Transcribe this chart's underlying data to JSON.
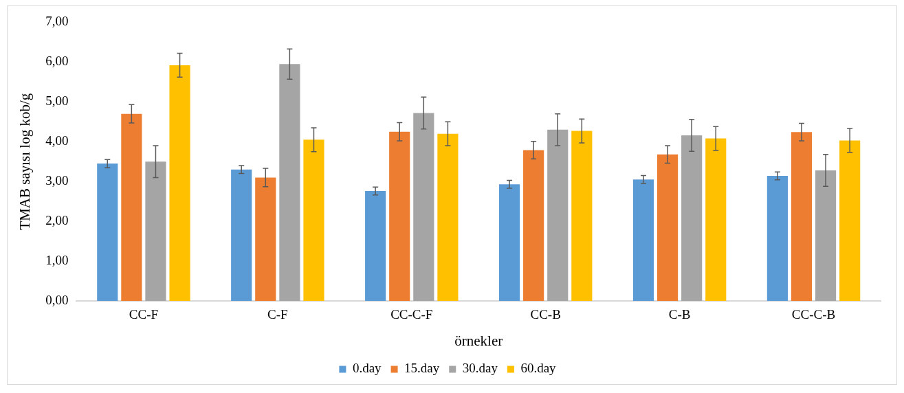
{
  "chart_data": {
    "type": "bar",
    "xlabel": "örnekler",
    "ylabel": "TMAB sayısı log kob/g",
    "categories": [
      "CC-F",
      "C-F",
      "CC-C-F",
      "CC-B",
      "C-B",
      "CC-C-B"
    ],
    "series": [
      {
        "name": "0.day",
        "color": "#5b9bd5",
        "values": [
          3.45,
          3.3,
          2.76,
          2.93,
          3.05,
          3.14
        ],
        "errors": [
          0.1,
          0.1,
          0.1,
          0.1,
          0.1,
          0.1
        ]
      },
      {
        "name": "15.day",
        "color": "#ed7d31",
        "values": [
          4.7,
          3.1,
          4.25,
          3.79,
          3.68,
          4.24
        ],
        "errors": [
          0.23,
          0.23,
          0.23,
          0.22,
          0.22,
          0.22
        ]
      },
      {
        "name": "30.day",
        "color": "#a5a5a5",
        "values": [
          3.5,
          5.95,
          4.72,
          4.3,
          4.16,
          3.28
        ],
        "errors": [
          0.4,
          0.38,
          0.4,
          0.4,
          0.4,
          0.4
        ]
      },
      {
        "name": "60.day",
        "color": "#ffc000",
        "values": [
          5.92,
          4.05,
          4.2,
          4.27,
          4.08,
          4.03
        ],
        "errors": [
          0.3,
          0.3,
          0.3,
          0.3,
          0.3,
          0.3
        ]
      }
    ],
    "ylim": [
      0,
      7
    ],
    "yticks": [
      {
        "value": 0,
        "label": "0,00"
      },
      {
        "value": 1,
        "label": "1,00"
      },
      {
        "value": 2,
        "label": "2,00"
      },
      {
        "value": 3,
        "label": "3,00"
      },
      {
        "value": 4,
        "label": "4,00"
      },
      {
        "value": 5,
        "label": "5,00"
      },
      {
        "value": 6,
        "label": "6,00"
      },
      {
        "value": 7,
        "label": "7,00"
      }
    ],
    "grid": false,
    "legend": "bottom"
  }
}
